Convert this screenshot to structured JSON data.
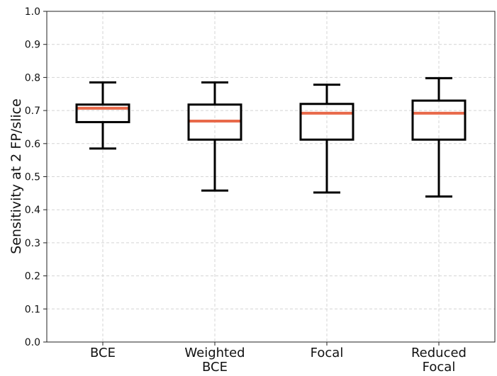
{
  "chart_data": {
    "type": "box",
    "title": "",
    "xlabel": "",
    "ylabel": "Sensitivity at 2 FP/slice",
    "ylim": [
      0.0,
      1.0
    ],
    "yticks": [
      "0.0",
      "0.1",
      "0.2",
      "0.3",
      "0.4",
      "0.5",
      "0.6",
      "0.7",
      "0.8",
      "0.9",
      "1.0"
    ],
    "grid": true,
    "categories": [
      [
        "BCE"
      ],
      [
        "Weighted",
        "BCE"
      ],
      [
        "Focal"
      ],
      [
        "Reduced",
        "Focal"
      ]
    ],
    "boxes": [
      {
        "whisker_low": 0.585,
        "q1": 0.665,
        "median": 0.707,
        "q3": 0.718,
        "whisker_high": 0.785
      },
      {
        "whisker_low": 0.458,
        "q1": 0.612,
        "median": 0.668,
        "q3": 0.718,
        "whisker_high": 0.785
      },
      {
        "whisker_low": 0.452,
        "q1": 0.612,
        "median": 0.692,
        "q3": 0.72,
        "whisker_high": 0.778
      },
      {
        "whisker_low": 0.44,
        "q1": 0.612,
        "median": 0.692,
        "q3": 0.73,
        "whisker_high": 0.798
      }
    ],
    "colors": {
      "box": "#000000",
      "median": "#e8694a",
      "grid": "#d4d4d4"
    }
  }
}
